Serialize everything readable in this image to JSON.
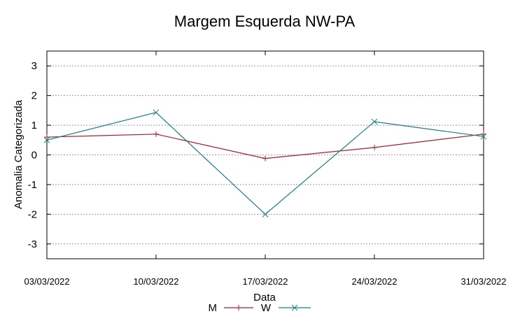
{
  "chart_data": {
    "type": "line",
    "title": "Margem Esquerda NW-PA",
    "xlabel": "Data",
    "ylabel": "Anomalia Categorizada",
    "categories": [
      "03/03/2022",
      "10/03/2022",
      "17/03/2022",
      "24/03/2022",
      "31/03/2022"
    ],
    "ylim": [
      -3.5,
      3.5
    ],
    "yticks": [
      "3",
      "2",
      "1",
      "0",
      "-1",
      "-2",
      "-3"
    ],
    "ytick_values": [
      3,
      2,
      1,
      0,
      -1,
      -2,
      -3
    ],
    "grid": true,
    "legend_position": "bottom",
    "series": [
      {
        "name": "M",
        "values": [
          0.6,
          0.7,
          -0.12,
          0.25,
          0.7
        ],
        "color": "#a0202c",
        "marker": "plus"
      },
      {
        "name": "W",
        "values": [
          0.5,
          1.43,
          -2.0,
          1.12,
          0.62
        ],
        "color": "#1a7f86",
        "marker": "cross"
      }
    ]
  }
}
